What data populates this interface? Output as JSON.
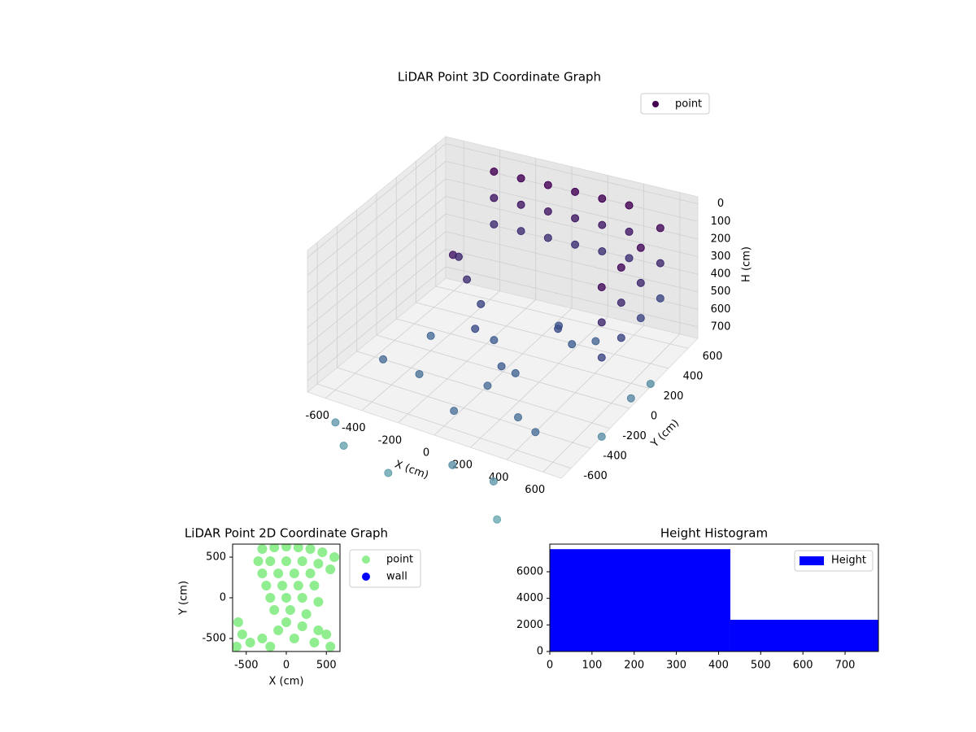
{
  "chart_data": [
    {
      "type": "scatter3d",
      "title": "LiDAR Point 3D Coordinate Graph",
      "x_label": "X (cm)",
      "y_label": "Y (cm)",
      "z_label": "H (cm)",
      "xlim": [
        -700,
        700
      ],
      "ylim": [
        -700,
        700
      ],
      "zlim": [
        -40,
        765
      ],
      "z_inverted": true,
      "xticks": [
        -600,
        -400,
        -200,
        0,
        200,
        400,
        600
      ],
      "yticks": [
        -600,
        -400,
        -200,
        0,
        200,
        400,
        600
      ],
      "zticks": [
        0,
        100,
        200,
        300,
        400,
        500,
        600,
        700
      ],
      "colormap": [
        "#440154",
        "#3b528b",
        "#6aaab2"
      ],
      "legend": "upper right",
      "grid": true,
      "series": [
        {
          "name": "point",
          "color": "#440154",
          "x": [
            -350,
            -200,
            -50,
            100,
            250,
            400,
            -350,
            -200,
            -50,
            100,
            250,
            400,
            -350,
            -200,
            -50,
            100,
            250,
            400,
            600,
            600,
            600,
            600,
            600,
            600,
            600,
            600,
            600,
            600,
            600,
            600,
            -250,
            -200,
            -150,
            -300,
            -100,
            -50,
            100,
            150,
            50,
            200,
            300,
            350,
            250,
            -500,
            -400,
            300,
            450,
            -300,
            0,
            -600,
            -500,
            100,
            300,
            600,
            600,
            600,
            -200,
            400
          ],
          "y": [
            550,
            550,
            550,
            550,
            550,
            550,
            550,
            550,
            550,
            550,
            550,
            550,
            550,
            550,
            550,
            550,
            550,
            550,
            -100,
            100,
            300,
            500,
            -100,
            100,
            300,
            500,
            -100,
            100,
            300,
            500,
            -50,
            0,
            50,
            100,
            -100,
            0,
            -200,
            -150,
            -250,
            200,
            150,
            300,
            100,
            -300,
            0,
            -400,
            -500,
            -300,
            -500,
            -600,
            -700,
            -700,
            -650,
            -100,
            200,
            400,
            -800,
            -800
          ],
          "h": [
            0,
            0,
            0,
            0,
            0,
            0,
            150,
            150,
            150,
            150,
            150,
            150,
            300,
            300,
            300,
            300,
            300,
            300,
            50,
            50,
            50,
            50,
            250,
            250,
            250,
            250,
            450,
            450,
            450,
            450,
            150,
            300,
            450,
            250,
            500,
            600,
            600,
            650,
            700,
            550,
            600,
            650,
            500,
            700,
            680,
            720,
            700,
            720,
            730,
            950,
            1000,
            900,
            950,
            900,
            850,
            880,
            1000,
            1050
          ]
        }
      ]
    },
    {
      "type": "scatter",
      "title": "LiDAR Point 2D Coordinate Graph",
      "x_label": "X (cm)",
      "y_label": "Y (cm)",
      "xlim": [
        -670,
        670
      ],
      "ylim": [
        -660,
        660
      ],
      "xticks": [
        -500,
        0,
        500
      ],
      "yticks": [
        -500,
        0,
        500
      ],
      "legend": "outside right",
      "series": [
        {
          "name": "point",
          "color": "#90ee90",
          "x": [
            -300,
            -150,
            0,
            150,
            300,
            450,
            600,
            -350,
            -200,
            0,
            200,
            400,
            550,
            -300,
            -100,
            100,
            300,
            -250,
            -50,
            150,
            350,
            -200,
            0,
            200,
            400,
            -150,
            50,
            250,
            0,
            200,
            -100,
            -600,
            -550,
            -450,
            -300,
            -200,
            400,
            500,
            350,
            550,
            -620,
            100
          ],
          "y": [
            600,
            620,
            630,
            620,
            600,
            560,
            500,
            450,
            450,
            450,
            450,
            420,
            350,
            300,
            300,
            300,
            300,
            150,
            150,
            150,
            150,
            0,
            0,
            0,
            -50,
            -150,
            -150,
            -200,
            -300,
            -350,
            -400,
            -300,
            -450,
            -550,
            -500,
            -600,
            -400,
            -450,
            -550,
            -600,
            -600,
            -500
          ]
        },
        {
          "name": "wall",
          "color": "#0000ff",
          "x": [],
          "y": []
        }
      ]
    },
    {
      "type": "histogram",
      "title": "Height Histogram",
      "bins": [
        0,
        428,
        779
      ],
      "xlim": [
        0,
        779
      ],
      "ylim": [
        0,
        8080
      ],
      "xticks": [
        0,
        100,
        200,
        300,
        400,
        500,
        600,
        700
      ],
      "yticks": [
        0,
        2000,
        4000,
        6000
      ],
      "legend": "upper right",
      "series": [
        {
          "name": "Height",
          "color": "#0000ff",
          "values": [
            7700,
            2385
          ]
        }
      ]
    }
  ]
}
